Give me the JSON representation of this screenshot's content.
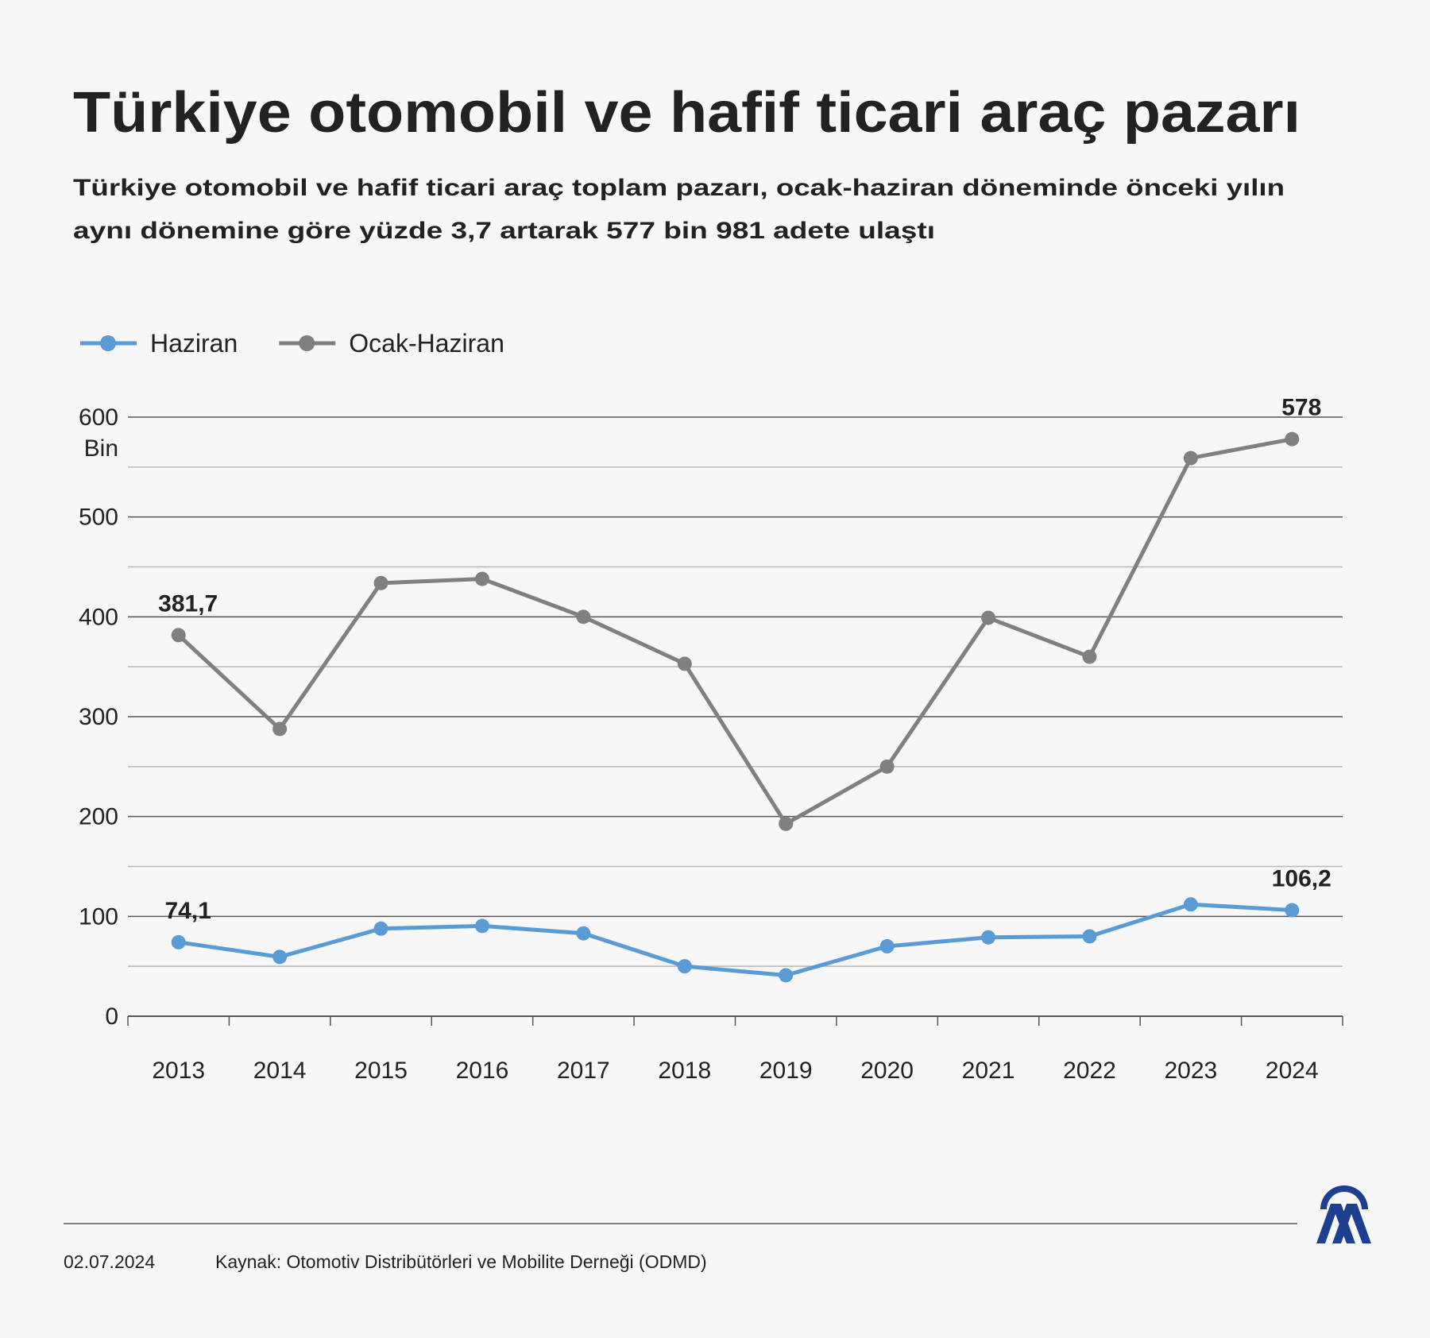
{
  "title": "Türkiye otomobil ve hafif ticari araç pazarı",
  "subtitle_lines": [
    "Türkiye otomobil ve hafif ticari araç toplam pazarı, ocak-haziran döneminde önceki yılın",
    "aynı dönemine göre yüzde 3,7 artarak 577 bin 981 adete ulaştı"
  ],
  "chart_data": {
    "type": "line",
    "y_unit": "Bin",
    "categories": [
      "2013",
      "2014",
      "2015",
      "2016",
      "2017",
      "2018",
      "2019",
      "2020",
      "2021",
      "2022",
      "2023",
      "2024"
    ],
    "series": [
      {
        "name": "Haziran",
        "color": "#5b9bd5",
        "values": [
          74.1,
          59.4,
          87.7,
          90.4,
          83,
          50,
          41,
          70,
          79,
          80,
          112,
          106.2
        ],
        "value_labels": [
          "74,1",
          null,
          null,
          null,
          null,
          null,
          null,
          null,
          null,
          null,
          null,
          "106,2"
        ]
      },
      {
        "name": "Ocak-Haziran",
        "color": "#808080",
        "values": [
          381.7,
          287.7,
          433.8,
          438,
          400,
          353,
          192.7,
          250,
          399,
          360,
          559,
          578
        ],
        "value_labels": [
          "381,7",
          null,
          null,
          null,
          null,
          null,
          null,
          null,
          null,
          null,
          null,
          "578"
        ]
      }
    ],
    "ylim": [
      0,
      600
    ],
    "yticks": [
      0,
      100,
      200,
      300,
      400,
      500,
      600
    ],
    "minor_yticks": [
      50,
      150,
      250,
      350,
      450,
      550
    ],
    "grid": true
  },
  "footer": {
    "date": "02.07.2024",
    "source": "Kaynak: Otomotiv Distribütörleri ve Mobilite Derneği (ODMD)"
  }
}
